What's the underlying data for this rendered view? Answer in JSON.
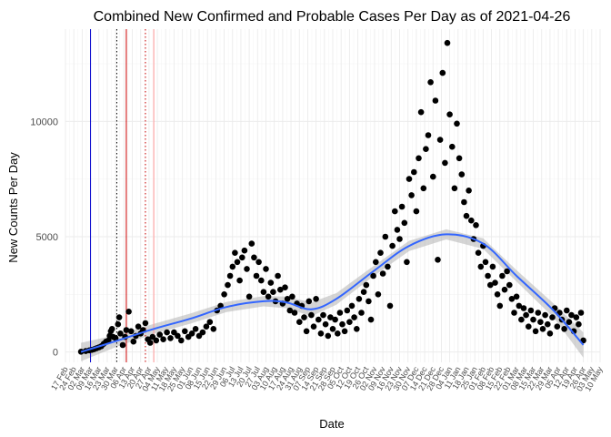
{
  "chart_data": {
    "type": "scatter",
    "title": "Combined New Confirmed and Probable Cases Per Day as of 2021-04-26",
    "xlabel": "Date",
    "ylabel": "New Counts Per Day",
    "x_range": [
      "2020-02-17",
      "2021-05-10"
    ],
    "y_range": [
      -450,
      14000
    ],
    "y_ticks": [
      0,
      5000,
      10000
    ],
    "x_tick_interval_days": 7,
    "x_tick_labels": [
      "17 Feb",
      "24 Feb",
      "02 Mar",
      "09 Mar",
      "16 Mar",
      "23 Mar",
      "30 Mar",
      "06 Apr",
      "13 Apr",
      "20 Apr",
      "27 Apr",
      "04 May",
      "11 May",
      "18 May",
      "25 May",
      "01 Jun",
      "08 Jun",
      "15 Jun",
      "22 Jun",
      "29 Jun",
      "06 Jul",
      "13 Jul",
      "20 Jul",
      "27 Jul",
      "03 Aug",
      "10 Aug",
      "17 Aug",
      "24 Aug",
      "31 Aug",
      "07 Sep",
      "14 Sep",
      "21 Sep",
      "28 Sep",
      "05 Oct",
      "12 Oct",
      "19 Oct",
      "26 Oct",
      "02 Nov",
      "09 Nov",
      "16 Nov",
      "23 Nov",
      "30 Nov",
      "07 Dec",
      "14 Dec",
      "21 Dec",
      "28 Dec",
      "04 Jan",
      "11 Jan",
      "18 Jan",
      "25 Jan",
      "01 Feb",
      "08 Feb",
      "15 Feb",
      "22 Feb",
      "01 Mar",
      "08 Mar",
      "15 Mar",
      "22 Mar",
      "29 Mar",
      "05 Apr",
      "12 Apr",
      "19 Apr",
      "26 Apr",
      "03 May",
      "10 May"
    ],
    "grid": true,
    "legend": "none",
    "series": [
      {
        "points": [
          [
            "2020-03-01",
            10
          ],
          [
            "2020-03-05",
            40
          ],
          [
            "2020-03-08",
            70
          ],
          [
            "2020-03-10",
            90
          ],
          [
            "2020-03-12",
            120
          ],
          [
            "2020-03-14",
            160
          ],
          [
            "2020-03-16",
            200
          ],
          [
            "2020-03-18",
            250
          ],
          [
            "2020-03-20",
            350
          ],
          [
            "2020-03-22",
            450
          ],
          [
            "2020-03-24",
            500
          ],
          [
            "2020-03-25",
            700
          ],
          [
            "2020-03-26",
            900
          ],
          [
            "2020-03-27",
            1000
          ],
          [
            "2020-03-28",
            650
          ],
          [
            "2020-03-30",
            600
          ],
          [
            "2020-04-01",
            1200
          ],
          [
            "2020-04-02",
            1500
          ],
          [
            "2020-04-03",
            800
          ],
          [
            "2020-04-05",
            300
          ],
          [
            "2020-04-07",
            650
          ],
          [
            "2020-04-08",
            950
          ],
          [
            "2020-04-10",
            1750
          ],
          [
            "2020-04-12",
            900
          ],
          [
            "2020-04-14",
            450
          ],
          [
            "2020-04-16",
            700
          ],
          [
            "2020-04-18",
            1100
          ],
          [
            "2020-04-20",
            800
          ],
          [
            "2020-04-22",
            950
          ],
          [
            "2020-04-24",
            1250
          ],
          [
            "2020-04-26",
            550
          ],
          [
            "2020-04-28",
            400
          ],
          [
            "2020-04-30",
            650
          ],
          [
            "2020-05-03",
            500
          ],
          [
            "2020-05-06",
            750
          ],
          [
            "2020-05-09",
            550
          ],
          [
            "2020-05-12",
            850
          ],
          [
            "2020-05-15",
            600
          ],
          [
            "2020-05-18",
            850
          ],
          [
            "2020-05-21",
            700
          ],
          [
            "2020-05-24",
            500
          ],
          [
            "2020-05-27",
            900
          ],
          [
            "2020-05-30",
            650
          ],
          [
            "2020-06-02",
            800
          ],
          [
            "2020-06-05",
            1000
          ],
          [
            "2020-06-08",
            700
          ],
          [
            "2020-06-11",
            850
          ],
          [
            "2020-06-14",
            1100
          ],
          [
            "2020-06-17",
            1300
          ],
          [
            "2020-06-20",
            1000
          ],
          [
            "2020-06-23",
            1800
          ],
          [
            "2020-06-26",
            2000
          ],
          [
            "2020-06-29",
            2500
          ],
          [
            "2020-07-02",
            2900
          ],
          [
            "2020-07-04",
            3300
          ],
          [
            "2020-07-06",
            3700
          ],
          [
            "2020-07-08",
            4300
          ],
          [
            "2020-07-10",
            3900
          ],
          [
            "2020-07-12",
            3100
          ],
          [
            "2020-07-14",
            4100
          ],
          [
            "2020-07-16",
            4400
          ],
          [
            "2020-07-18",
            3600
          ],
          [
            "2020-07-20",
            2400
          ],
          [
            "2020-07-22",
            4700
          ],
          [
            "2020-07-24",
            4100
          ],
          [
            "2020-07-26",
            3300
          ],
          [
            "2020-07-28",
            3900
          ],
          [
            "2020-07-30",
            3100
          ],
          [
            "2020-08-01",
            2600
          ],
          [
            "2020-08-03",
            3600
          ],
          [
            "2020-08-05",
            2400
          ],
          [
            "2020-08-07",
            3000
          ],
          [
            "2020-08-09",
            2600
          ],
          [
            "2020-08-11",
            2200
          ],
          [
            "2020-08-13",
            3300
          ],
          [
            "2020-08-15",
            2700
          ],
          [
            "2020-08-17",
            2100
          ],
          [
            "2020-08-19",
            2800
          ],
          [
            "2020-08-21",
            2300
          ],
          [
            "2020-08-23",
            1800
          ],
          [
            "2020-08-25",
            2400
          ],
          [
            "2020-08-27",
            1700
          ],
          [
            "2020-08-29",
            2100
          ],
          [
            "2020-08-31",
            1300
          ],
          [
            "2020-09-02",
            2000
          ],
          [
            "2020-09-04",
            1500
          ],
          [
            "2020-09-06",
            900
          ],
          [
            "2020-09-08",
            2200
          ],
          [
            "2020-09-10",
            1600
          ],
          [
            "2020-09-12",
            1100
          ],
          [
            "2020-09-14",
            2300
          ],
          [
            "2020-09-16",
            1400
          ],
          [
            "2020-09-18",
            800
          ],
          [
            "2020-09-20",
            1600
          ],
          [
            "2020-09-22",
            1200
          ],
          [
            "2020-09-24",
            700
          ],
          [
            "2020-09-26",
            1500
          ],
          [
            "2020-09-28",
            1000
          ],
          [
            "2020-09-30",
            1400
          ],
          [
            "2020-10-02",
            800
          ],
          [
            "2020-10-04",
            1700
          ],
          [
            "2020-10-06",
            1200
          ],
          [
            "2020-10-08",
            900
          ],
          [
            "2020-10-10",
            1800
          ],
          [
            "2020-10-12",
            1300
          ],
          [
            "2020-10-14",
            2000
          ],
          [
            "2020-10-16",
            1500
          ],
          [
            "2020-10-18",
            1000
          ],
          [
            "2020-10-20",
            2300
          ],
          [
            "2020-10-22",
            1700
          ],
          [
            "2020-10-24",
            2600
          ],
          [
            "2020-10-26",
            2900
          ],
          [
            "2020-10-28",
            2200
          ],
          [
            "2020-10-30",
            1400
          ],
          [
            "2020-11-01",
            3300
          ],
          [
            "2020-11-03",
            3900
          ],
          [
            "2020-11-05",
            2500
          ],
          [
            "2020-11-07",
            4300
          ],
          [
            "2020-11-09",
            3400
          ],
          [
            "2020-11-11",
            5000
          ],
          [
            "2020-11-13",
            3700
          ],
          [
            "2020-11-15",
            2000
          ],
          [
            "2020-11-17",
            4600
          ],
          [
            "2020-11-19",
            6100
          ],
          [
            "2020-11-21",
            5300
          ],
          [
            "2020-11-23",
            4900
          ],
          [
            "2020-11-25",
            6300
          ],
          [
            "2020-11-27",
            5600
          ],
          [
            "2020-11-29",
            3900
          ],
          [
            "2020-12-01",
            7500
          ],
          [
            "2020-12-03",
            6800
          ],
          [
            "2020-12-05",
            7800
          ],
          [
            "2020-12-07",
            6100
          ],
          [
            "2020-12-09",
            8400
          ],
          [
            "2020-12-11",
            10400
          ],
          [
            "2020-12-13",
            7100
          ],
          [
            "2020-12-15",
            8800
          ],
          [
            "2020-12-17",
            9400
          ],
          [
            "2020-12-19",
            11700
          ],
          [
            "2020-12-21",
            7600
          ],
          [
            "2020-12-23",
            10900
          ],
          [
            "2020-12-25",
            4000
          ],
          [
            "2020-12-27",
            9200
          ],
          [
            "2020-12-29",
            12100
          ],
          [
            "2020-12-31",
            8200
          ],
          [
            "2021-01-02",
            13400
          ],
          [
            "2021-01-04",
            10300
          ],
          [
            "2021-01-06",
            8900
          ],
          [
            "2021-01-08",
            7100
          ],
          [
            "2021-01-10",
            9900
          ],
          [
            "2021-01-12",
            8400
          ],
          [
            "2021-01-14",
            7700
          ],
          [
            "2021-01-16",
            6500
          ],
          [
            "2021-01-18",
            5900
          ],
          [
            "2021-01-20",
            7000
          ],
          [
            "2021-01-22",
            5700
          ],
          [
            "2021-01-24",
            4900
          ],
          [
            "2021-01-26",
            5500
          ],
          [
            "2021-01-28",
            4300
          ],
          [
            "2021-01-30",
            3700
          ],
          [
            "2021-02-01",
            4600
          ],
          [
            "2021-02-03",
            3900
          ],
          [
            "2021-02-05",
            3300
          ],
          [
            "2021-02-07",
            2900
          ],
          [
            "2021-02-09",
            3700
          ],
          [
            "2021-02-11",
            3000
          ],
          [
            "2021-02-13",
            2500
          ],
          [
            "2021-02-15",
            2000
          ],
          [
            "2021-02-17",
            3300
          ],
          [
            "2021-02-19",
            2700
          ],
          [
            "2021-02-21",
            3500
          ],
          [
            "2021-02-23",
            2900
          ],
          [
            "2021-02-25",
            2300
          ],
          [
            "2021-02-27",
            1700
          ],
          [
            "2021-03-01",
            2400
          ],
          [
            "2021-03-03",
            2000
          ],
          [
            "2021-03-05",
            1400
          ],
          [
            "2021-03-07",
            1900
          ],
          [
            "2021-03-09",
            1600
          ],
          [
            "2021-03-11",
            1100
          ],
          [
            "2021-03-13",
            1800
          ],
          [
            "2021-03-15",
            1400
          ],
          [
            "2021-03-17",
            900
          ],
          [
            "2021-03-19",
            1700
          ],
          [
            "2021-03-21",
            1300
          ],
          [
            "2021-03-23",
            1000
          ],
          [
            "2021-03-25",
            1600
          ],
          [
            "2021-03-27",
            1200
          ],
          [
            "2021-03-29",
            800
          ],
          [
            "2021-03-31",
            1500
          ],
          [
            "2021-04-02",
            1900
          ],
          [
            "2021-04-04",
            1100
          ],
          [
            "2021-04-06",
            1700
          ],
          [
            "2021-04-08",
            1400
          ],
          [
            "2021-04-10",
            1000
          ],
          [
            "2021-04-12",
            1800
          ],
          [
            "2021-04-14",
            1300
          ],
          [
            "2021-04-16",
            1600
          ],
          [
            "2021-04-18",
            900
          ],
          [
            "2021-04-20",
            1500
          ],
          [
            "2021-04-22",
            1200
          ],
          [
            "2021-04-24",
            1700
          ],
          [
            "2021-04-26",
            500
          ]
        ]
      }
    ],
    "smooth_trend": {
      "points": [
        [
          "2020-03-01",
          0
        ],
        [
          "2020-04-01",
          500
        ],
        [
          "2020-05-01",
          1000
        ],
        [
          "2020-06-01",
          1450
        ],
        [
          "2020-07-01",
          1950
        ],
        [
          "2020-08-01",
          2200
        ],
        [
          "2020-08-20",
          2150
        ],
        [
          "2020-09-10",
          1850
        ],
        [
          "2020-10-01",
          2300
        ],
        [
          "2020-11-01",
          3500
        ],
        [
          "2020-12-01",
          4600
        ],
        [
          "2021-01-01",
          5100
        ],
        [
          "2021-02-01",
          4700
        ],
        [
          "2021-03-01",
          3300
        ],
        [
          "2021-04-01",
          1800
        ],
        [
          "2021-04-26",
          300
        ]
      ],
      "band_halfwidth": [
        400,
        250,
        220,
        220,
        220,
        220,
        250,
        300,
        250,
        220,
        220,
        220,
        230,
        250,
        300,
        550
      ]
    },
    "reference_lines": [
      {
        "date": "2020-03-09",
        "color": "#0000cc",
        "style": "solid"
      },
      {
        "date": "2020-03-31",
        "color": "#000000",
        "style": "dotted"
      },
      {
        "date": "2020-04-08",
        "color": "#cc0000",
        "style": "solid"
      },
      {
        "date": "2020-04-24",
        "color": "#cc0000",
        "style": "dotted"
      },
      {
        "date": "2020-05-01",
        "color": "#ff9999",
        "style": "solid"
      }
    ],
    "colors": {
      "points": "#000000",
      "trend": "#3366ff",
      "band": "#b3b3b3",
      "grid": "#ebebeb"
    }
  }
}
